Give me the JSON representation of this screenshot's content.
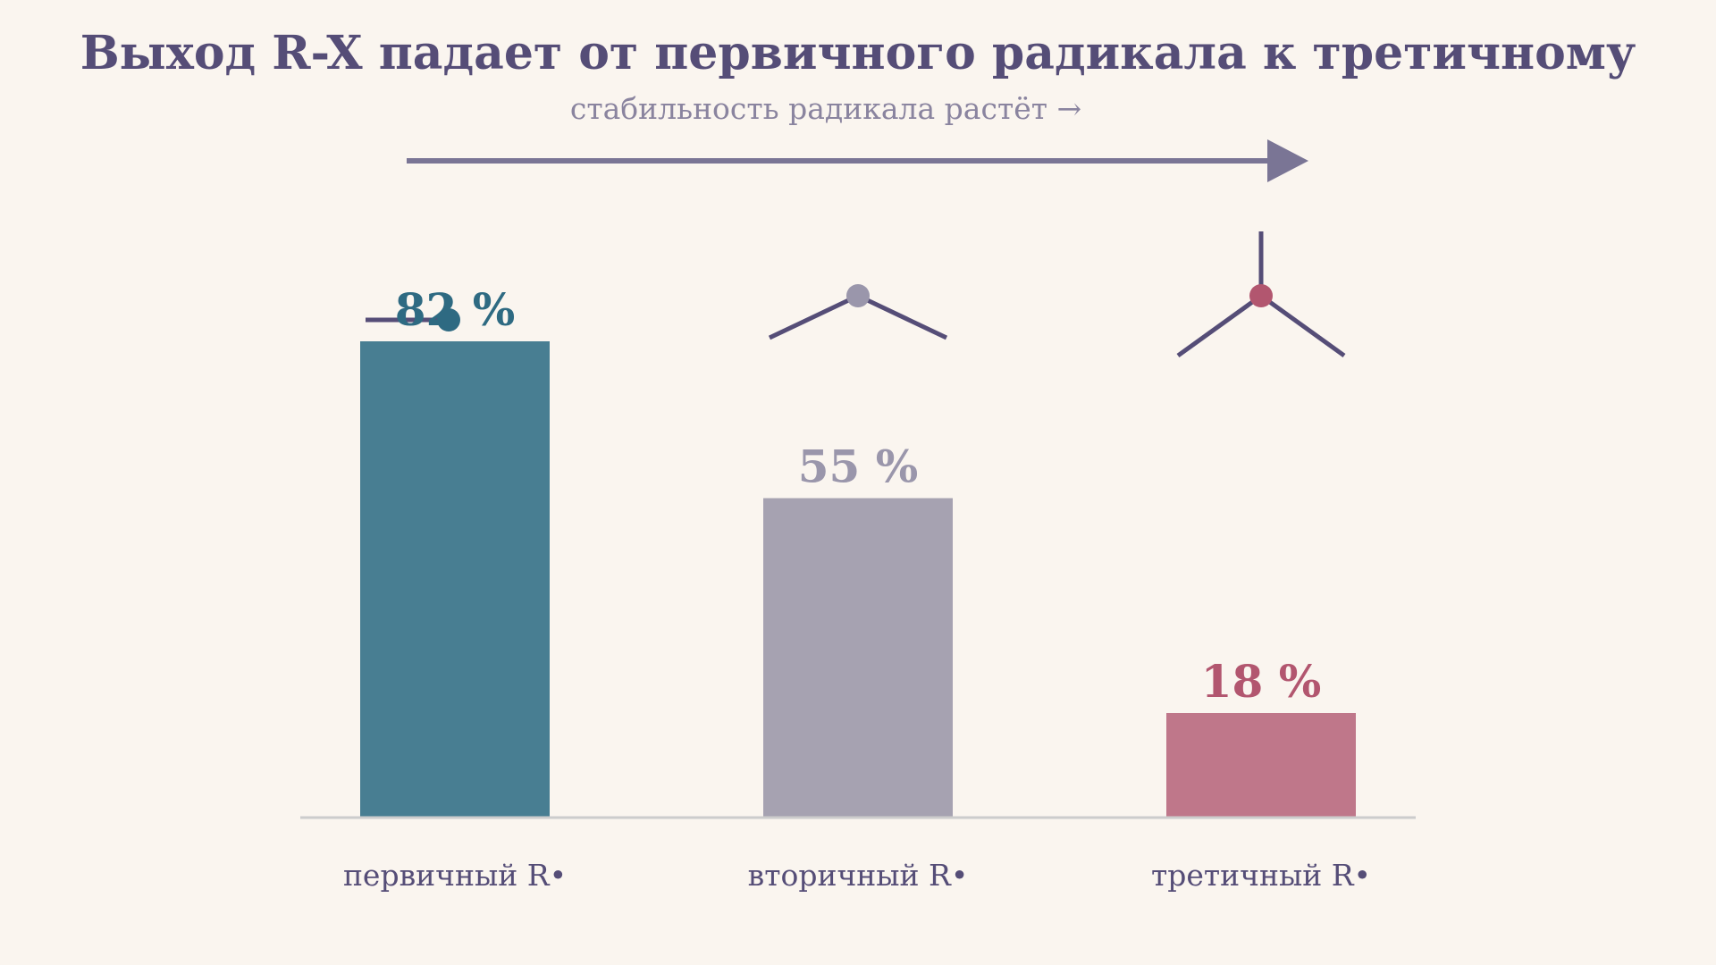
{
  "chart_data": {
    "type": "bar",
    "title": "Выход R-X падает от первичного радикала к третичному",
    "subtitle": "стабильность радикала растёт →",
    "categories": [
      "первичный R•",
      "вторичный R•",
      "третичный R•"
    ],
    "values": [
      82,
      55,
      18
    ],
    "value_labels": [
      "82 %",
      "55 %",
      "18 %"
    ],
    "unit": "%",
    "ylim": [
      0,
      100
    ],
    "grid": false,
    "legend": "none",
    "xlabel": "",
    "ylabel": "",
    "structures": [
      "primary-radical",
      "secondary-radical",
      "tertiary-radical"
    ],
    "colors": {
      "bars": [
        "#487e92",
        "#a6a2b1",
        "#bf778a"
      ],
      "labels": [
        "#2e6a82",
        "#9a96ab",
        "#b2566f"
      ],
      "radical_dots": [
        "#2e6a82",
        "#9a96ab",
        "#b2566f"
      ],
      "title": "#554d77",
      "subtitle": "#8a849f",
      "arrow": "#7a7595",
      "bonds": "#554d77",
      "baseline": "#cccccc"
    }
  }
}
